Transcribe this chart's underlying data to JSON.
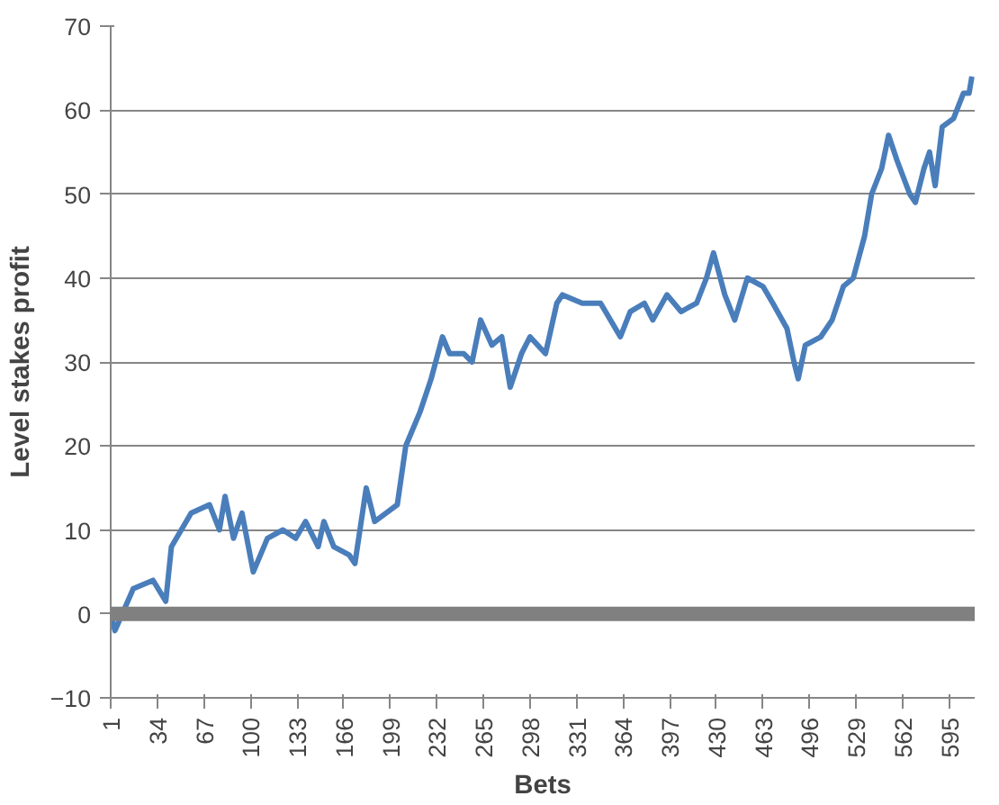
{
  "chart_data": {
    "type": "line",
    "xlabel": "Bets",
    "ylabel": "Level stakes profit",
    "x": [
      1,
      4,
      17,
      31,
      40,
      44,
      51,
      58,
      71,
      78,
      82,
      88,
      94,
      102,
      112,
      123,
      132,
      139,
      148,
      152,
      159,
      170,
      174,
      182,
      188,
      196,
      204,
      210,
      220,
      228,
      236,
      241,
      251,
      257,
      263,
      271,
      278,
      284,
      292,
      298,
      309,
      317,
      321,
      335,
      348,
      362,
      369,
      379,
      385,
      395,
      405,
      416,
      423,
      428,
      436,
      443,
      452,
      463,
      470,
      480,
      485,
      488,
      493,
      504,
      512,
      520,
      527,
      535,
      540,
      547,
      552,
      558,
      567,
      571,
      577,
      581,
      585,
      590,
      598,
      605,
      609,
      611
    ],
    "series": [
      {
        "color": "#4a7ebb",
        "values": [
          0,
          -2,
          3,
          4,
          1.5,
          8,
          10,
          12,
          13,
          10,
          14,
          9,
          12,
          5,
          9,
          10,
          9,
          11,
          8,
          11,
          8,
          7,
          6,
          15,
          11,
          12,
          13,
          20,
          24,
          28,
          33,
          31,
          31,
          30,
          35,
          32,
          33,
          27,
          31,
          33,
          31,
          37,
          38,
          37,
          37,
          33,
          36,
          37,
          35,
          38,
          36,
          37,
          40,
          43,
          38,
          35,
          40,
          39,
          37,
          34,
          30,
          28,
          32,
          33,
          35,
          39,
          40,
          45,
          50,
          53,
          57,
          54,
          50,
          49,
          53,
          55,
          51,
          58,
          59,
          62,
          62,
          64
        ]
      }
    ],
    "xlim": [
      1,
      613
    ],
    "xticks": [
      1,
      34,
      67,
      100,
      133,
      166,
      199,
      232,
      265,
      298,
      331,
      364,
      397,
      430,
      463,
      496,
      529,
      562,
      595
    ],
    "ylim": [
      -10,
      70
    ],
    "yticks": [
      -10,
      0,
      10,
      20,
      30,
      40,
      50,
      60,
      70
    ],
    "grid": "y",
    "marker": "none",
    "line_style": "solid",
    "ref_lines": [
      {
        "axis": "y",
        "value": 0,
        "color": "#808080"
      }
    ]
  }
}
